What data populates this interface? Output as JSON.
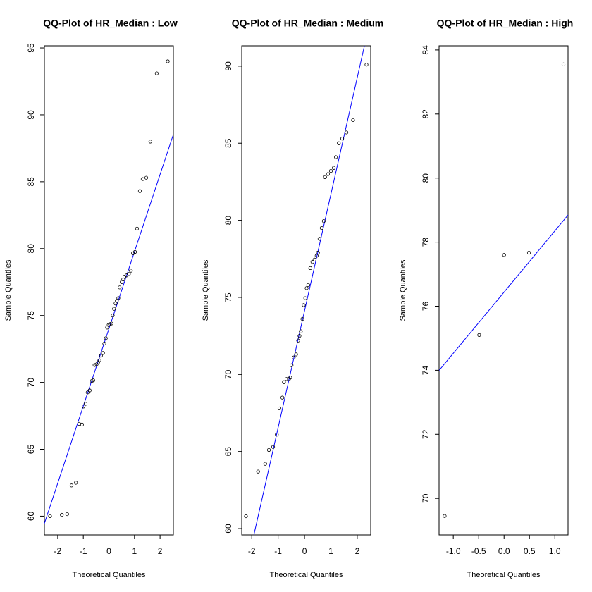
{
  "chart_data": [
    {
      "type": "scatter",
      "title": "QQ-Plot of HR_Median : Low",
      "x_label": "Theoretical Quantiles",
      "y_label": "Sample Quantiles",
      "color": "#000000",
      "x": [
        -2.3,
        -1.84,
        -1.63,
        -1.46,
        -1.29,
        -1.16,
        -1.05,
        -0.99,
        -0.91,
        -0.83,
        -0.75,
        -0.67,
        -0.61,
        -0.56,
        -0.48,
        -0.42,
        -0.37,
        -0.31,
        -0.23,
        -0.18,
        -0.12,
        -0.07,
        -0.01,
        0.04,
        0.1,
        0.15,
        0.2,
        0.26,
        0.31,
        0.37,
        0.42,
        0.5,
        0.56,
        0.61,
        0.69,
        0.78,
        0.86,
        0.94,
        1.02,
        1.1,
        1.21,
        1.32,
        1.46,
        1.62,
        1.87,
        2.3
      ],
      "values": [
        60.0,
        60.1,
        60.15,
        62.3,
        62.5,
        66.9,
        66.85,
        68.2,
        68.4,
        69.25,
        69.4,
        70.1,
        70.15,
        71.3,
        71.35,
        71.5,
        71.65,
        72.0,
        72.2,
        72.9,
        73.3,
        74.1,
        74.3,
        74.35,
        74.4,
        75.0,
        75.5,
        75.9,
        76.1,
        76.3,
        77.1,
        77.5,
        77.7,
        77.9,
        78.0,
        78.1,
        78.35,
        79.65,
        79.75,
        81.5,
        84.3,
        85.2,
        85.3,
        88.0,
        93.1,
        94.0
      ],
      "line": {
        "intercept": 74.0,
        "slope": 5.77,
        "color": "#0000ff"
      },
      "xlim": [
        -2.52,
        2.52
      ],
      "xticks": [
        -2,
        -1,
        0,
        1,
        2
      ],
      "ylim": [
        58.6,
        95.16
      ],
      "yticks": [
        60,
        65,
        70,
        75,
        80,
        85,
        90,
        95
      ]
    },
    {
      "type": "scatter",
      "title": "QQ-Plot of HR_Median : Medium",
      "x_label": "Theoretical Quantiles",
      "y_label": "Sample Quantiles",
      "color": "#000000",
      "x": [
        -2.22,
        -1.76,
        -1.49,
        -1.35,
        -1.19,
        -1.05,
        -0.95,
        -0.84,
        -0.78,
        -0.68,
        -0.59,
        -0.54,
        -0.49,
        -0.41,
        -0.32,
        -0.24,
        -0.19,
        -0.14,
        -0.08,
        -0.03,
        0.03,
        0.08,
        0.14,
        0.22,
        0.3,
        0.38,
        0.46,
        0.51,
        0.57,
        0.65,
        0.73,
        0.78,
        0.89,
        1.0,
        1.11,
        1.19,
        1.3,
        1.43,
        1.59,
        1.84,
        2.35
      ],
      "values": [
        60.8,
        63.7,
        64.2,
        65.1,
        65.3,
        66.1,
        67.8,
        68.5,
        69.5,
        69.7,
        69.7,
        69.8,
        70.6,
        71.1,
        71.3,
        72.2,
        72.5,
        72.8,
        73.6,
        74.5,
        74.95,
        75.6,
        75.8,
        76.9,
        77.3,
        77.45,
        77.7,
        77.9,
        78.8,
        79.5,
        79.95,
        82.8,
        83.0,
        83.2,
        83.4,
        84.1,
        85.0,
        85.3,
        85.7,
        86.5,
        90.1
      ],
      "line": {
        "intercept": 74.12,
        "slope": 7.57,
        "color": "#0000ff"
      },
      "xlim": [
        -2.38,
        2.51
      ],
      "xticks": [
        -2,
        -1,
        0,
        1,
        2
      ],
      "ylim": [
        59.59,
        91.32
      ],
      "yticks": [
        60,
        65,
        70,
        75,
        80,
        85,
        90
      ]
    },
    {
      "type": "scatter",
      "title": "QQ-Plot of HR_Median : High",
      "x_label": "Theoretical Quantiles",
      "y_label": "Sample Quantiles",
      "color": "#000000",
      "x": [
        -1.17,
        -0.49,
        0,
        0.49,
        1.17
      ],
      "values": [
        69.45,
        75.1,
        77.6,
        77.67,
        83.55
      ],
      "line": {
        "intercept": 76.44,
        "slope": 1.91,
        "color": "#0000ff"
      },
      "xlim": [
        -1.28,
        1.26
      ],
      "xticks": [
        {
          "value": -1,
          "label": "-1.0"
        },
        {
          "value": -0.5,
          "label": "-0.5"
        },
        {
          "value": 0,
          "label": "0.0"
        },
        {
          "value": 0.5,
          "label": "0.5"
        },
        {
          "value": 1,
          "label": "1.0"
        }
      ],
      "ylim": [
        68.86,
        84.13
      ],
      "yticks": [
        70,
        72,
        74,
        76,
        78,
        80,
        82,
        84
      ]
    }
  ]
}
